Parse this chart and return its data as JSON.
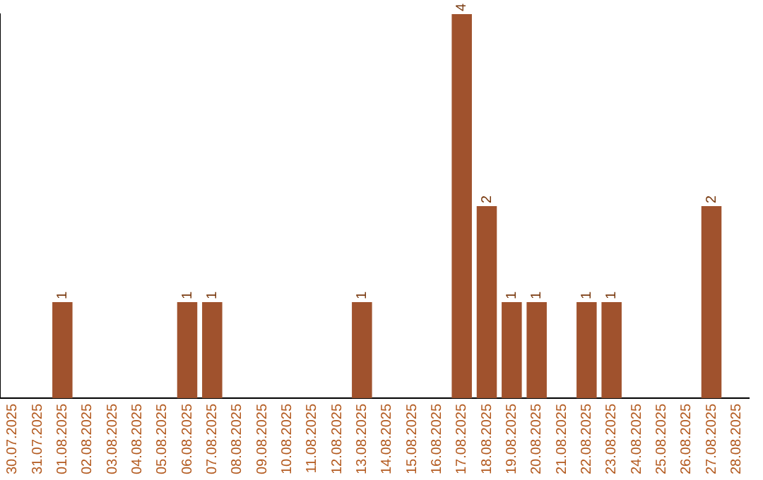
{
  "chart_data": {
    "type": "bar",
    "categories": [
      "30.07.2025",
      "31.07.2025",
      "01.08.2025",
      "02.08.2025",
      "03.08.2025",
      "04.08.2025",
      "05.08.2025",
      "06.08.2025",
      "07.08.2025",
      "08.08.2025",
      "09.08.2025",
      "10.08.2025",
      "11.08.2025",
      "12.08.2025",
      "13.08.2025",
      "14.08.2025",
      "15.08.2025",
      "16.08.2025",
      "17.08.2025",
      "18.08.2025",
      "19.08.2025",
      "20.08.2025",
      "21.08.2025",
      "22.08.2025",
      "23.08.2025",
      "24.08.2025",
      "25.08.2025",
      "26.08.2025",
      "27.08.2025",
      "28.08.2025"
    ],
    "values": [
      0,
      0,
      1,
      0,
      0,
      0,
      0,
      1,
      1,
      0,
      0,
      0,
      0,
      0,
      1,
      0,
      0,
      0,
      4,
      2,
      1,
      1,
      0,
      1,
      1,
      0,
      0,
      0,
      2,
      0
    ],
    "value_labels": [
      null,
      null,
      "1",
      null,
      null,
      null,
      null,
      "1",
      "1",
      null,
      null,
      null,
      null,
      null,
      "1",
      null,
      null,
      null,
      "4",
      "2",
      "1",
      "1",
      null,
      "1",
      "1",
      null,
      null,
      null,
      "2",
      null
    ],
    "color": "#a0522d",
    "ylim": [
      0,
      4
    ],
    "tick_labels": "x",
    "grid": false,
    "legend": false
  }
}
